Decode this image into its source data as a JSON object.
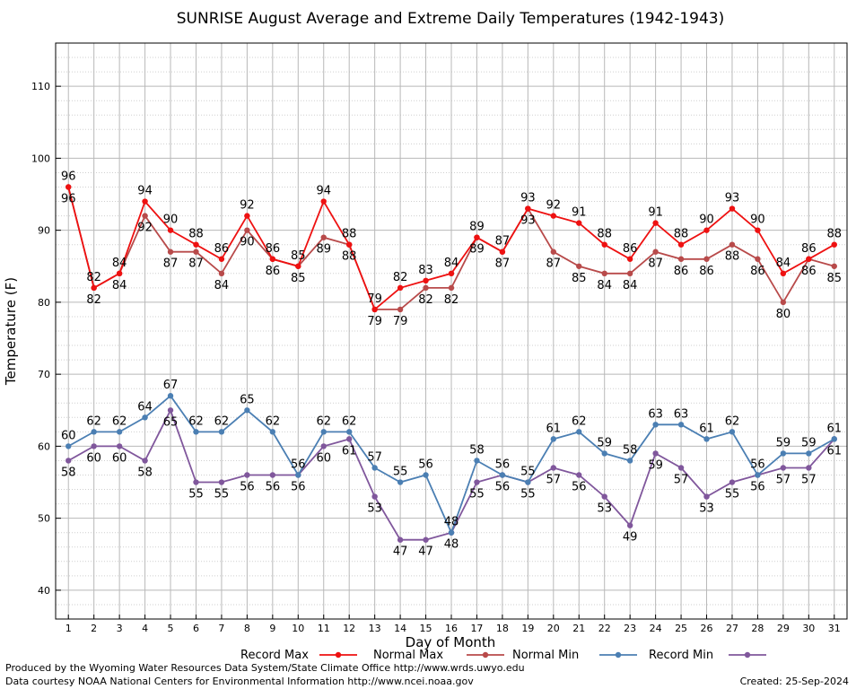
{
  "chart_data": {
    "type": "line",
    "title": "SUNRISE August Average and Extreme Daily Temperatures (1942-1943)",
    "xlabel": "Day of Month",
    "ylabel": "Temperature (F)",
    "xlim": [
      0.5,
      31.5
    ],
    "ylim": [
      36,
      116
    ],
    "x": [
      1,
      2,
      3,
      4,
      5,
      6,
      7,
      8,
      9,
      10,
      11,
      12,
      13,
      14,
      15,
      16,
      17,
      18,
      19,
      20,
      21,
      22,
      23,
      24,
      25,
      26,
      27,
      28,
      29,
      30,
      31
    ],
    "yticks": [
      40,
      50,
      60,
      70,
      80,
      90,
      100,
      110
    ],
    "grid": true,
    "legend_position": "bottom",
    "series": [
      {
        "name": "Record Max",
        "color": "#ee1111",
        "values": [
          96,
          82,
          84,
          94,
          90,
          88,
          86,
          92,
          86,
          85,
          94,
          88,
          79,
          82,
          83,
          84,
          89,
          87,
          93,
          92,
          91,
          88,
          86,
          91,
          88,
          90,
          93,
          90,
          84,
          86,
          88
        ]
      },
      {
        "name": "Normal Max",
        "color": "#b84a4a",
        "values": [
          96,
          82,
          84,
          92,
          87,
          87,
          84,
          90,
          86,
          85,
          89,
          88,
          79,
          79,
          82,
          82,
          89,
          87,
          93,
          87,
          85,
          84,
          84,
          87,
          86,
          86,
          88,
          86,
          80,
          86,
          85
        ]
      },
      {
        "name": "Normal Min",
        "color": "#4b7fb3",
        "values": [
          60,
          62,
          62,
          64,
          67,
          62,
          62,
          65,
          62,
          56,
          62,
          62,
          57,
          55,
          56,
          48,
          58,
          56,
          55,
          61,
          62,
          59,
          58,
          63,
          63,
          61,
          62,
          56,
          59,
          59,
          61
        ]
      },
      {
        "name": "Record Min",
        "color": "#80579c",
        "values": [
          58,
          60,
          60,
          58,
          65,
          55,
          55,
          56,
          56,
          56,
          60,
          61,
          53,
          47,
          47,
          48,
          55,
          56,
          55,
          57,
          56,
          53,
          49,
          59,
          57,
          53,
          55,
          56,
          57,
          57,
          61
        ]
      }
    ]
  },
  "footer": {
    "line1": "Produced by the Wyoming Water Resources Data System/State Climate Office http://www.wrds.uwyo.edu",
    "line2": "Data courtesy NOAA National Centers for Environmental Information http://www.ncei.noaa.gov",
    "created": "Created:  25-Sep-2024"
  }
}
